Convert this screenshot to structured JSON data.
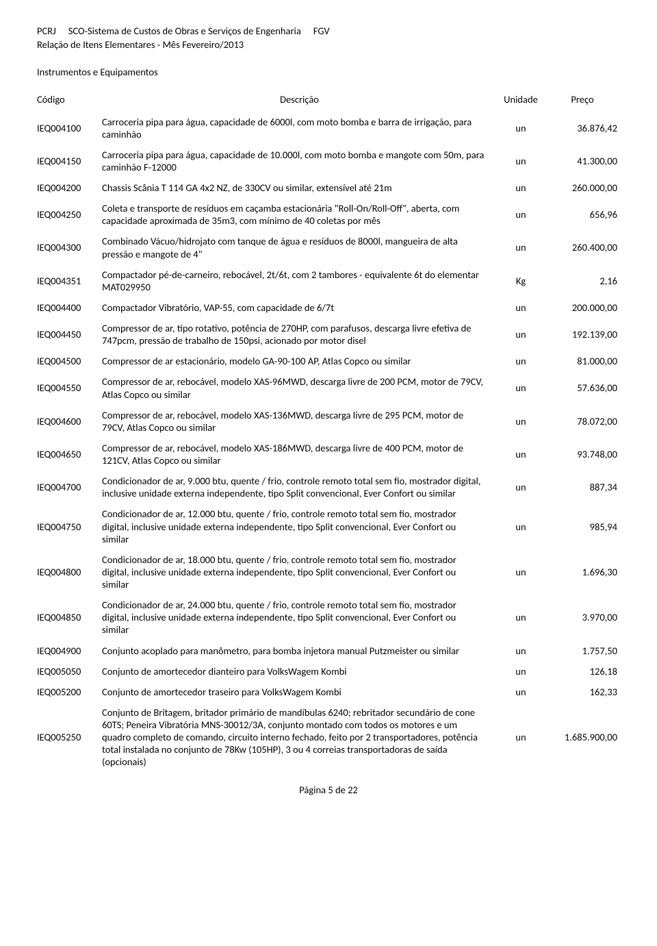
{
  "header": {
    "org": "PCRJ",
    "title": "SCO-Sistema de Custos de Obras e Serviços de Engenharia",
    "source": "FGV",
    "subtitle": "Relação de Itens Elementares - Mês Fevereiro/2013"
  },
  "section_title": "Instrumentos e Equipamentos",
  "columns": {
    "code": "Código",
    "desc": "Descrição",
    "unit": "Unidade",
    "price": "Preço"
  },
  "rows": [
    {
      "code": "IEQ004100",
      "desc": "Carroceria pipa para água, capacidade de 6000l, com moto bomba e barra de irrigação, para caminhão",
      "unit": "un",
      "price": "36.876,42"
    },
    {
      "code": "IEQ004150",
      "desc": "Carroceria pipa para água, capacidade de 10.000l, com moto bomba e mangote com 50m, para caminhão F-12000",
      "unit": "un",
      "price": "41.300,00"
    },
    {
      "code": "IEQ004200",
      "desc": "Chassis Scânia T 114 GA 4x2 NZ, de 330CV ou similar, extensível até 21m",
      "unit": "un",
      "price": "260.000,00"
    },
    {
      "code": "IEQ004250",
      "desc": "Coleta e transporte de resíduos em caçamba estacionária \"Roll-On/Roll-Off\", aberta, com capacidade aproximada de 35m3, com mínimo de 40 coletas por mês",
      "unit": "un",
      "price": "656,96"
    },
    {
      "code": "IEQ004300",
      "desc": "Combinado Vácuo/hidrojato com tanque de água e resíduos de 8000l, mangueira de alta pressão e mangote de 4\"",
      "unit": "un",
      "price": "260.400,00"
    },
    {
      "code": "IEQ004351",
      "desc": "Compactador pé-de-carneiro, rebocável, 2t/6t, com 2 tambores - equivalente 6t do elementar MAT029950",
      "unit": "Kg",
      "price": "2,16"
    },
    {
      "code": "IEQ004400",
      "desc": "Compactador Vibratório, VAP-55, com capacidade de 6/7t",
      "unit": "un",
      "price": "200.000,00"
    },
    {
      "code": "IEQ004450",
      "desc": "Compressor de ar, tipo rotativo, potência de 270HP, com parafusos, descarga livre efetiva de 747pcm, pressão de trabalho de 150psi, acionado por motor disel",
      "unit": "un",
      "price": "192.139,00"
    },
    {
      "code": "IEQ004500",
      "desc": "Compressor de ar estacionário, modelo GA-90-100 AP, Atlas Copco ou similar",
      "unit": "un",
      "price": "81.000,00"
    },
    {
      "code": "IEQ004550",
      "desc": "Compressor de ar, rebocável, modelo XAS-96MWD, descarga livre de 200 PCM, motor de 79CV, Atlas Copco ou similar",
      "unit": "un",
      "price": "57.636,00"
    },
    {
      "code": "IEQ004600",
      "desc": "Compressor de ar, rebocável, modelo XAS-136MWD, descarga livre de 295 PCM, motor de 79CV, Atlas Copco ou similar",
      "unit": "un",
      "price": "78.072,00"
    },
    {
      "code": "IEQ004650",
      "desc": "Compressor de ar, rebocável, modelo XAS-186MWD, descarga livre de 400 PCM, motor de 121CV, Atlas Copco ou similar",
      "unit": "un",
      "price": "93.748,00"
    },
    {
      "code": "IEQ004700",
      "desc": "Condicionador de ar, 9.000 btu, quente / frio, controle remoto total sem fio, mostrador digital, inclusive unidade externa independente, tipo Split convencional, Ever Confort ou similar",
      "unit": "un",
      "price": "887,34"
    },
    {
      "code": "IEQ004750",
      "desc": "Condicionador de ar, 12.000 btu, quente / frio, controle remoto total sem fio, mostrador digital, inclusive unidade externa independente, tipo Split convencional, Ever Confort ou similar",
      "unit": "un",
      "price": "985,94"
    },
    {
      "code": "IEQ004800",
      "desc": "Condicionador de ar, 18.000 btu, quente / frio, controle remoto total sem fio, mostrador digital, inclusive unidade externa independente, tipo Split convencional, Ever Confort ou similar",
      "unit": "un",
      "price": "1.696,30"
    },
    {
      "code": "IEQ004850",
      "desc": "Condicionador de ar, 24.000 btu, quente / frio, controle remoto total sem fio, mostrador digital, inclusive unidade externa independente, tipo Split convencional, Ever Confort ou similar",
      "unit": "un",
      "price": "3.970,00"
    },
    {
      "code": "IEQ004900",
      "desc": "Conjunto acoplado para manômetro, para bomba injetora manual Putzmeister ou similar",
      "unit": "un",
      "price": "1.757,50"
    },
    {
      "code": "IEQ005050",
      "desc": "Conjunto de amortecedor dianteiro para VolksWagem Kombi",
      "unit": "un",
      "price": "126,18"
    },
    {
      "code": "IEQ005200",
      "desc": "Conjunto de amortecedor traseiro para VolksWagem Kombi",
      "unit": "un",
      "price": "162,33"
    },
    {
      "code": "IEQ005250",
      "desc": "Conjunto de Britagem, britador primário de mandíbulas 6240; rebritador secundário de cone 60TS; Peneira Vibratória MNS-30012/3A, conjunto montado com todos os motores e um quadro completo de comando, circuito interno fechado, feito por 2 transportadores, potência total instalada no conjunto de 78Kw (105HP), 3 ou 4 correias transportadoras de saída (opcionais)",
      "unit": "un",
      "price": "1.685.900,00"
    }
  ],
  "footer": "Página 5 de 22"
}
